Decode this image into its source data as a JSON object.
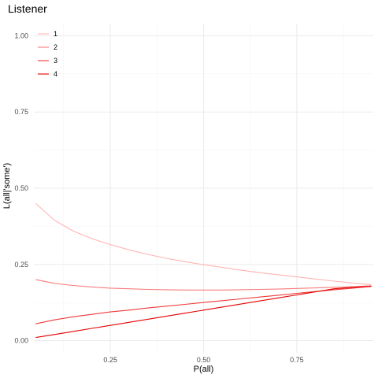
{
  "chart_data": {
    "type": "line",
    "title": "Listener",
    "xlabel": "P(all)",
    "ylabel": "L(all|'some')",
    "xlim": [
      0.045,
      0.955
    ],
    "ylim": [
      -0.04,
      1.04
    ],
    "x_ticks": [
      0.25,
      0.5,
      0.75
    ],
    "x_tick_labels": [
      "0.25",
      "0.50",
      "0.75"
    ],
    "y_ticks": [
      0.0,
      0.25,
      0.5,
      0.75,
      1.0
    ],
    "y_tick_labels": [
      "0.00",
      "0.25",
      "0.50",
      "0.75",
      "1.00"
    ],
    "grid": true,
    "legend_placement": "top-left",
    "x": [
      0.05,
      0.1,
      0.15,
      0.2,
      0.25,
      0.3,
      0.35,
      0.4,
      0.45,
      0.5,
      0.55,
      0.6,
      0.65,
      0.7,
      0.75,
      0.8,
      0.85,
      0.9,
      0.95
    ],
    "series": [
      {
        "name": "1",
        "color": "#ffb3b3",
        "values": [
          0.45,
          0.395,
          0.36,
          0.335,
          0.315,
          0.298,
          0.283,
          0.27,
          0.259,
          0.249,
          0.24,
          0.231,
          0.223,
          0.216,
          0.209,
          0.202,
          0.195,
          0.189,
          0.183
        ]
      },
      {
        "name": "2",
        "color": "#f77b7b",
        "values": [
          0.2,
          0.188,
          0.181,
          0.176,
          0.172,
          0.17,
          0.168,
          0.167,
          0.166,
          0.166,
          0.166,
          0.167,
          0.168,
          0.169,
          0.171,
          0.173,
          0.175,
          0.177,
          0.18
        ]
      },
      {
        "name": "3",
        "color": "#ee3a3a",
        "values": [
          0.055,
          0.068,
          0.078,
          0.086,
          0.094,
          0.1,
          0.107,
          0.113,
          0.119,
          0.125,
          0.131,
          0.137,
          0.143,
          0.149,
          0.155,
          0.161,
          0.167,
          0.172,
          0.178
        ]
      },
      {
        "name": "4",
        "color": "#e50000",
        "values": [
          0.01,
          0.02,
          0.03,
          0.04,
          0.05,
          0.06,
          0.07,
          0.08,
          0.09,
          0.1,
          0.11,
          0.12,
          0.13,
          0.14,
          0.15,
          0.16,
          0.17,
          0.175,
          0.178
        ]
      }
    ]
  }
}
